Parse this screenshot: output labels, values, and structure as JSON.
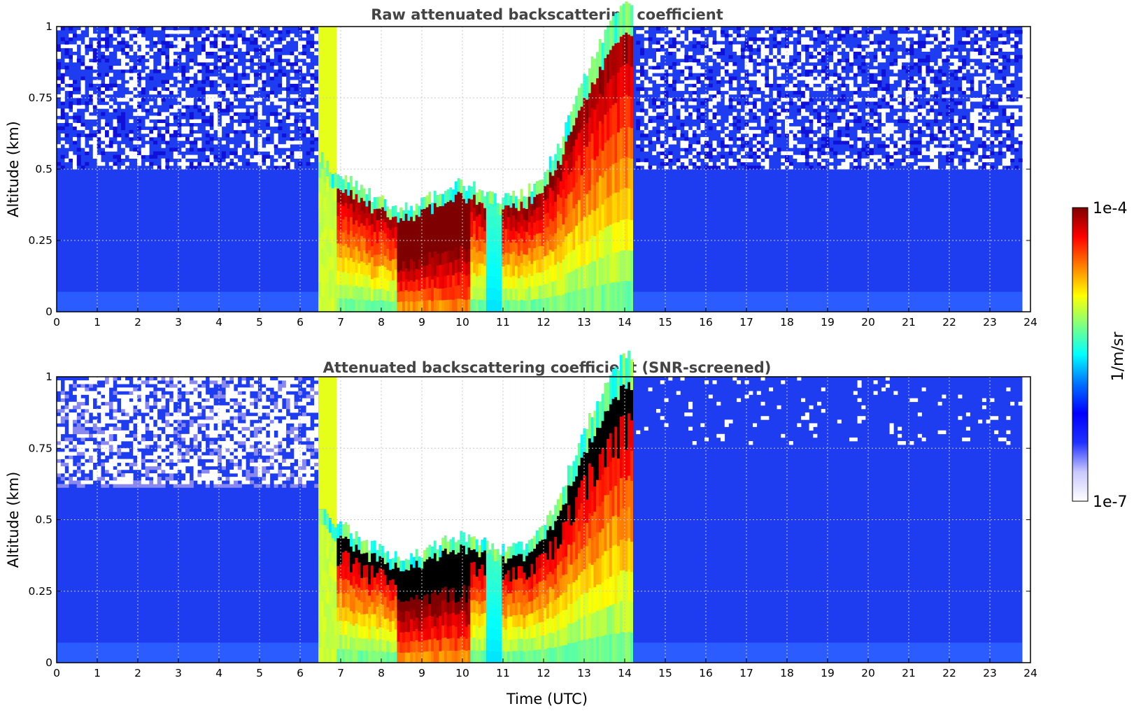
{
  "colors": {
    "low": "#1e3cf0",
    "jet_stops": [
      "#00007f",
      "#0000ff",
      "#0080ff",
      "#00ffff",
      "#80ff80",
      "#ffff00",
      "#ff8000",
      "#ff0000",
      "#7f0000"
    ],
    "background": "#ffffff",
    "title_color": "#444444"
  },
  "chart_data": [
    {
      "type": "heatmap",
      "title": "Raw attenuated backscattering coefficient",
      "xlabel": "",
      "ylabel": "Altitude (km)",
      "xlim": [
        0,
        24
      ],
      "ylim": [
        0,
        1
      ],
      "x_ticks": [
        0,
        1,
        2,
        3,
        4,
        5,
        6,
        7,
        8,
        9,
        10,
        11,
        12,
        13,
        14,
        15,
        16,
        17,
        18,
        19,
        20,
        21,
        22,
        23,
        24
      ],
      "y_ticks": [
        "0",
        "0.25",
        "0.5",
        "0.75",
        "1"
      ],
      "grid": true,
      "data_end_time": 23.8,
      "fog_start": 6.45,
      "fog_end": 14.2,
      "cloud_base_km": [
        [
          6.5,
          0.42
        ],
        [
          7,
          0.36
        ],
        [
          7.5,
          0.31
        ],
        [
          8,
          0.27
        ],
        [
          8.5,
          0.24
        ],
        [
          9,
          0.26
        ],
        [
          9.5,
          0.3
        ],
        [
          10,
          0.33
        ],
        [
          10.5,
          0.3
        ],
        [
          11,
          0.28
        ],
        [
          11.5,
          0.29
        ],
        [
          12,
          0.35
        ],
        [
          12.5,
          0.5
        ],
        [
          13,
          0.7
        ],
        [
          13.5,
          0.85
        ],
        [
          14,
          0.95
        ]
      ],
      "scale": "log",
      "notes": "noisy, no screening"
    },
    {
      "type": "heatmap",
      "title": "Attenuated backscattering coefficient (SNR-screened)",
      "xlabel": "Time (UTC)",
      "ylabel": "Altitude (km)",
      "xlim": [
        0,
        24
      ],
      "ylim": [
        0,
        1
      ],
      "x_ticks": [
        0,
        1,
        2,
        3,
        4,
        5,
        6,
        7,
        8,
        9,
        10,
        11,
        12,
        13,
        14,
        15,
        16,
        17,
        18,
        19,
        20,
        21,
        22,
        23,
        24
      ],
      "y_ticks": [
        "0",
        "0.25",
        "0.5",
        "0.75",
        "1"
      ],
      "grid": true,
      "data_end_time": 23.8,
      "fog_start": 6.45,
      "fog_end": 14.2,
      "cloud_base_km": [
        [
          6.5,
          0.42
        ],
        [
          7,
          0.36
        ],
        [
          7.5,
          0.31
        ],
        [
          8,
          0.27
        ],
        [
          8.5,
          0.24
        ],
        [
          9,
          0.26
        ],
        [
          9.5,
          0.3
        ],
        [
          10,
          0.33
        ],
        [
          10.5,
          0.3
        ],
        [
          11,
          0.28
        ],
        [
          11.5,
          0.29
        ],
        [
          12,
          0.35
        ],
        [
          12.5,
          0.5
        ],
        [
          13,
          0.7
        ],
        [
          13.5,
          0.85
        ],
        [
          14,
          0.95
        ]
      ],
      "scale": "log",
      "notes": "SNR-screened"
    }
  ],
  "colorbar": {
    "max_label": "1e-4",
    "min_label": "1e-7",
    "unit": "1/m/sr"
  }
}
